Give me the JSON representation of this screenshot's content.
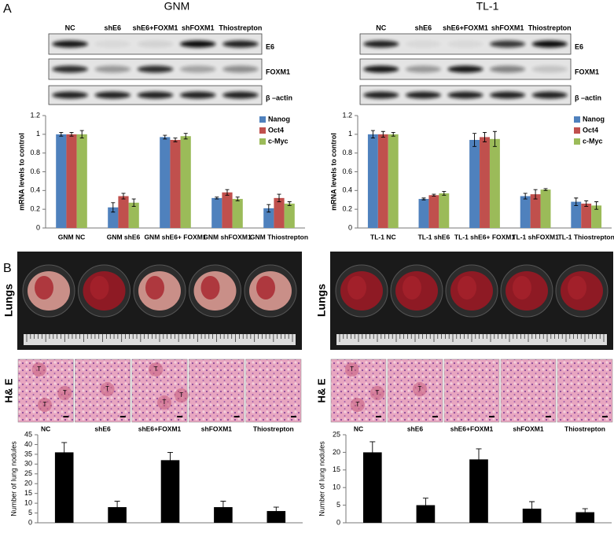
{
  "panel_labels": [
    "A",
    "B"
  ],
  "blots": [
    {
      "title": "GNM",
      "lanes": [
        "NC",
        "shE6",
        "shE6+FOXM1",
        "shFOXM1",
        "Thiostrepton"
      ],
      "rows": [
        "E6",
        "FOXM1",
        "β –actin"
      ]
    },
    {
      "title": "TL-1",
      "lanes": [
        "NC",
        "shE6",
        "shE6+FOXM1",
        "shFOXM1",
        "Thiostrepton"
      ],
      "rows": [
        "E6",
        "FOXM1",
        "β –actin"
      ]
    }
  ],
  "lungs_label": "Lungs",
  "he_label": "H& E",
  "tumor_marker": "T",
  "chart_data": [
    {
      "type": "bar",
      "ylabel": "mRNA  levels to control",
      "categories": [
        "GNM NC",
        "GNM shE6",
        "GNM shE6+ FOXM1",
        "GNM shFOXM1",
        "GNM Thiostrepton"
      ],
      "series": [
        {
          "name": "Nanog",
          "color": "#4f81bd",
          "values": [
            1.0,
            0.22,
            0.97,
            0.32,
            0.21
          ],
          "errors": [
            0.02,
            0.05,
            0.02,
            0.01,
            0.04
          ]
        },
        {
          "name": "Oct4",
          "color": "#c0504d",
          "values": [
            1.0,
            0.34,
            0.94,
            0.38,
            0.32
          ],
          "errors": [
            0.02,
            0.03,
            0.02,
            0.03,
            0.04
          ]
        },
        {
          "name": "c-Myc",
          "color": "#9bbb59",
          "values": [
            1.0,
            0.27,
            0.98,
            0.31,
            0.26
          ],
          "errors": [
            0.04,
            0.04,
            0.03,
            0.02,
            0.02
          ]
        }
      ],
      "ylim": [
        0,
        1.2
      ],
      "yticks": [
        0,
        0.2,
        0.4,
        0.6,
        0.8,
        1,
        1.2
      ],
      "legend": "top-right"
    },
    {
      "type": "bar",
      "ylabel": "mRNA  levels to control",
      "categories": [
        "TL-1 NC",
        "TL-1 shE6",
        "TL-1 shE6+ FOXM1",
        "TL-1 shFOXM1",
        "TL-1 Thiostrepton"
      ],
      "series": [
        {
          "name": "Nanog",
          "color": "#4f81bd",
          "values": [
            1.0,
            0.31,
            0.94,
            0.34,
            0.28
          ],
          "errors": [
            0.04,
            0.01,
            0.07,
            0.03,
            0.04
          ]
        },
        {
          "name": "Oct4",
          "color": "#c0504d",
          "values": [
            1.0,
            0.35,
            0.97,
            0.36,
            0.26
          ],
          "errors": [
            0.03,
            0.01,
            0.05,
            0.05,
            0.03
          ]
        },
        {
          "name": "c-Myc",
          "color": "#9bbb59",
          "values": [
            1.0,
            0.37,
            0.95,
            0.41,
            0.24
          ],
          "errors": [
            0.02,
            0.02,
            0.08,
            0.01,
            0.04
          ]
        }
      ],
      "ylim": [
        0,
        1.2
      ],
      "yticks": [
        0,
        0.2,
        0.4,
        0.6,
        0.8,
        1,
        1.2
      ],
      "legend": "top-right"
    },
    {
      "type": "bar",
      "ylabel": "Number of lung nodules",
      "categories": [
        "NC",
        "shE6",
        "shE6+FOXM1",
        "shFOXM1",
        "Thiostrepton"
      ],
      "values": [
        36,
        8,
        32,
        8,
        6
      ],
      "errors": [
        5,
        3,
        4,
        3,
        2
      ],
      "color": "#000000",
      "ylim": [
        0,
        45
      ],
      "yticks": [
        0,
        5,
        10,
        15,
        20,
        25,
        30,
        35,
        40,
        45
      ]
    },
    {
      "type": "bar",
      "ylabel": "Number of lung nodules",
      "categories": [
        "NC",
        "shE6",
        "shE6+FOXM1",
        "shFOXM1",
        "Thiostrepton"
      ],
      "values": [
        20,
        5,
        18,
        4,
        3
      ],
      "errors": [
        3,
        2,
        3,
        2,
        1
      ],
      "color": "#000000",
      "ylim": [
        0,
        25
      ],
      "yticks": [
        0,
        5,
        10,
        15,
        20,
        25
      ]
    }
  ]
}
